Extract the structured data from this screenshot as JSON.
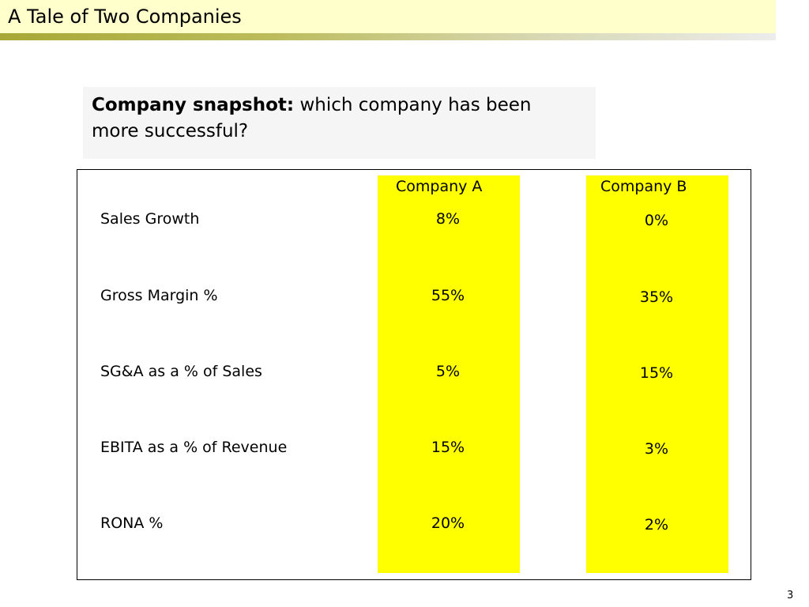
{
  "slide": {
    "title": "A Tale of Two Companies",
    "page_number": "3"
  },
  "snapshot": {
    "bold_label": "Company snapshot:",
    "text_line1": "which company has been",
    "text_line2": "more successful?"
  },
  "table": {
    "columns": [
      "Company A",
      "Company B"
    ],
    "rows": [
      {
        "label": "Sales Growth",
        "a": "8%",
        "b": "0%"
      },
      {
        "label": "Gross Margin %",
        "a": "55%",
        "b": "35%"
      },
      {
        "label": "SG&A as a % of Sales",
        "a": "5%",
        "b": "15%"
      },
      {
        "label": "EBITA as a % of Revenue",
        "a": "15%",
        "b": "3%"
      },
      {
        "label": "RONA %",
        "a": "20%",
        "b": "2%"
      }
    ]
  },
  "colors": {
    "title_bar": "#ffffcc",
    "highlight": "#ffff00",
    "snapshot_bg": "#f5f5f5"
  }
}
